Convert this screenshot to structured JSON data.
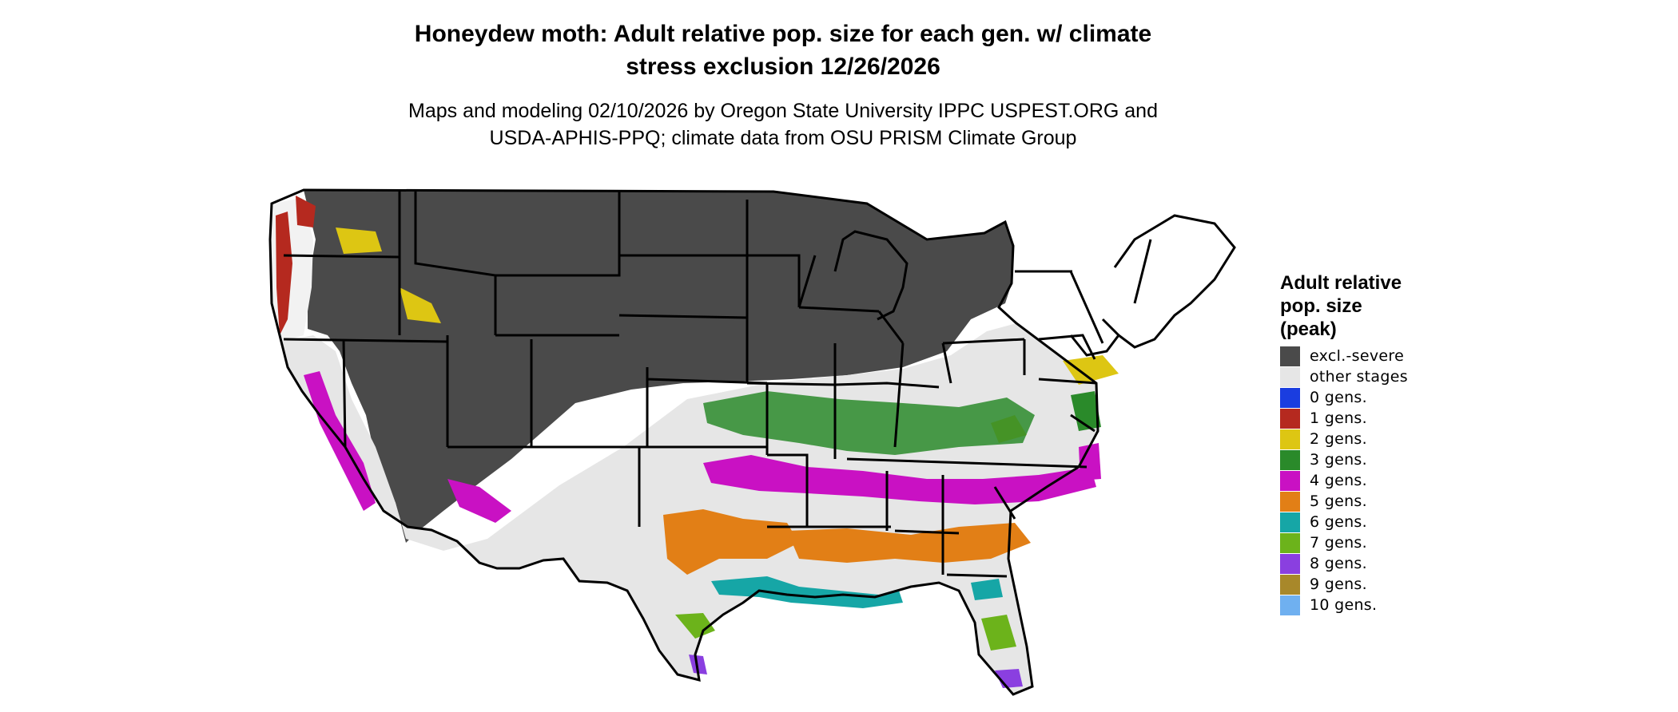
{
  "title_line1": "Honeydew moth: Adult relative pop. size for each gen. w/ climate",
  "title_line2": "stress exclusion 12/26/2026",
  "subtitle_line1": "Maps and modeling 02/10/2026 by Oregon State University IPPC USPEST.ORG and",
  "subtitle_line2": "USDA-APHIS-PPQ; climate data from OSU PRISM Climate Group",
  "legend": {
    "title_line1": "Adult relative",
    "title_line2": "pop. size",
    "title_line3": "(peak)",
    "items": [
      {
        "label": "excl.-severe",
        "color": "#4a4a4a"
      },
      {
        "label": "other stages",
        "color": "#e6e6e6"
      },
      {
        "label": "0 gens.",
        "color": "#1a3de0"
      },
      {
        "label": "1 gens.",
        "color": "#b5291f"
      },
      {
        "label": "2 gens.",
        "color": "#ddc613"
      },
      {
        "label": "3 gens.",
        "color": "#2a8a2a"
      },
      {
        "label": "4 gens.",
        "color": "#c911c3"
      },
      {
        "label": "5 gens.",
        "color": "#e27f16"
      },
      {
        "label": "6 gens.",
        "color": "#16a6a6"
      },
      {
        "label": "7 gens.",
        "color": "#6cb31b"
      },
      {
        "label": "8 gens.",
        "color": "#8a3fe0"
      },
      {
        "label": "9 gens.",
        "color": "#a8882a"
      },
      {
        "label": "10 gens.",
        "color": "#6fb0f0"
      }
    ]
  }
}
